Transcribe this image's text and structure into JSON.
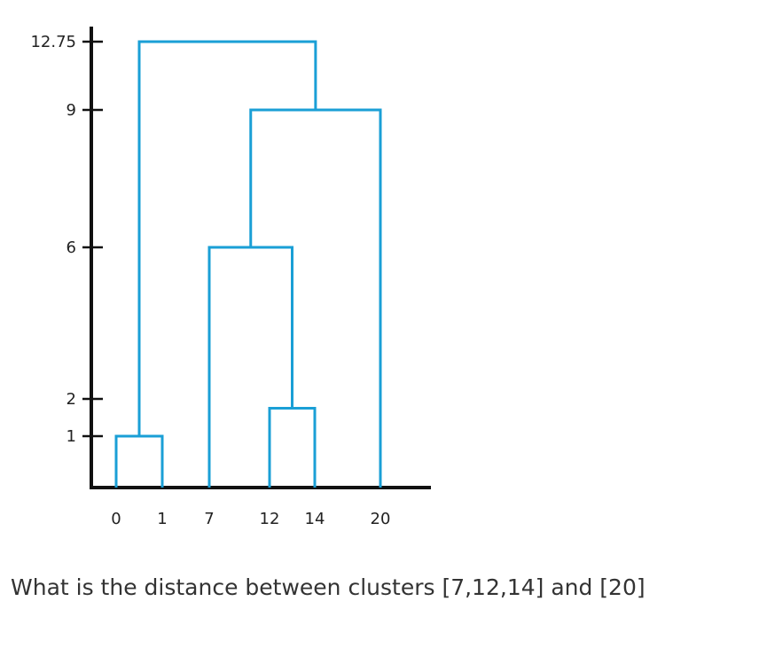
{
  "diagram": {
    "type": "dendrogram",
    "y_ticks": [
      {
        "value": 12.75,
        "label": "12.75"
      },
      {
        "value": 9,
        "label": "9"
      },
      {
        "value": 6,
        "label": "6"
      },
      {
        "value": 2,
        "label": "2"
      },
      {
        "value": 1,
        "label": "1"
      }
    ],
    "leaves": [
      "0",
      "1",
      "7",
      "12",
      "14",
      "20"
    ],
    "merges": [
      {
        "left": [
          "0"
        ],
        "right": [
          "1"
        ],
        "height": 1
      },
      {
        "left": [
          "12"
        ],
        "right": [
          "14"
        ],
        "height": 1.75
      },
      {
        "left": [
          "7"
        ],
        "right": [
          "12",
          "14"
        ],
        "height": 6
      },
      {
        "left": [
          "7",
          "12",
          "14"
        ],
        "right": [
          "20"
        ],
        "height": 9
      },
      {
        "left": [
          "0",
          "1"
        ],
        "right": [
          "7",
          "12",
          "14",
          "20"
        ],
        "height": 12.75
      }
    ],
    "colors": {
      "links": "#1a9fd6",
      "axes": "#111111"
    }
  },
  "question": {
    "text": "What is the distance between clusters [7,12,14] and [20]"
  }
}
